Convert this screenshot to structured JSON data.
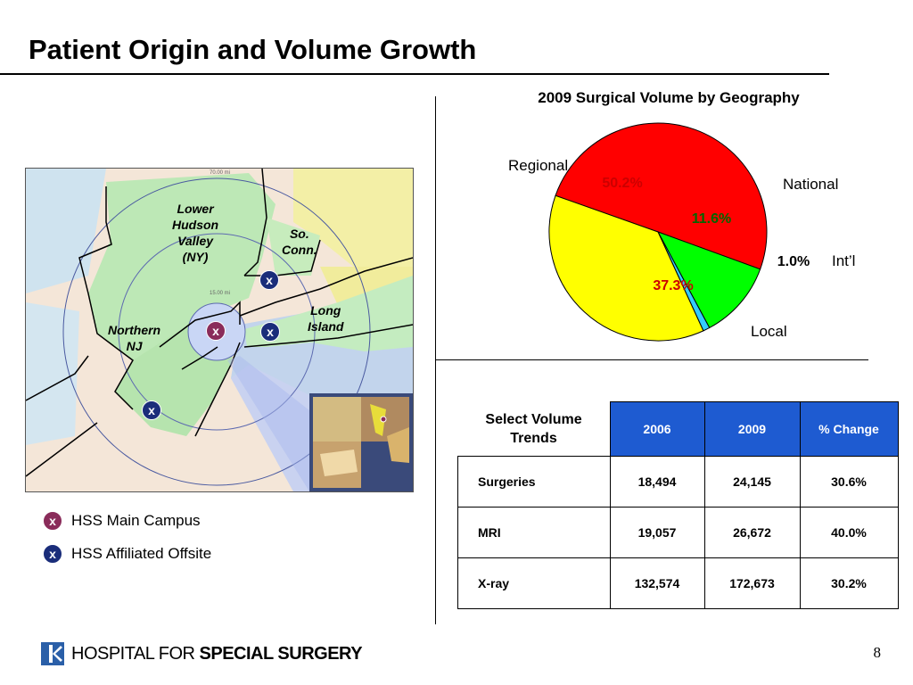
{
  "title": "Patient Origin and Volume Growth",
  "chart_data": {
    "type": "pie",
    "title": "2009 Surgical Volume by Geography",
    "slices": [
      {
        "label": "Regional",
        "value": 50.2,
        "display": "50.2%",
        "color": "#ff0000"
      },
      {
        "label": "National",
        "value": 11.6,
        "display": "11.6%",
        "color": "#00ff00"
      },
      {
        "label": "Int’l",
        "value": 1.0,
        "display": "1.0%",
        "color": "#33ccff"
      },
      {
        "label": "Local",
        "value": 37.3,
        "display": "37.3%",
        "color": "#ffff00"
      }
    ]
  },
  "map": {
    "regions": {
      "lower_hudson": "Lower\nHudson\nValley\n(NY)",
      "so_conn": "So.\nConn.",
      "long_island": "Long\nIsland",
      "northern_nj": "Northern\nNJ"
    },
    "markers": {
      "main": "x",
      "affiliated": "x"
    }
  },
  "legend": {
    "main_label": "HSS Main Campus",
    "affiliated_label": "HSS Affiliated Offsite",
    "main_color": "#8a2c5a",
    "affiliated_color": "#1a2d7a"
  },
  "table": {
    "corner": "Select Volume\nTrends",
    "headers": [
      "2006",
      "2009",
      "% Change"
    ],
    "header_color": "#1e5bd1",
    "rows": [
      {
        "name": "Surgeries",
        "values": [
          "18,494",
          "24,145",
          "30.6%"
        ]
      },
      {
        "name": "MRI",
        "values": [
          "19,057",
          "26,672",
          "40.0%"
        ]
      },
      {
        "name": "X-ray",
        "values": [
          "132,574",
          "172,673",
          "30.2%"
        ]
      }
    ]
  },
  "footer": {
    "logo_prefix": "HOSPITAL FOR ",
    "logo_bold": "SPECIAL SURGERY",
    "page_number": "8"
  }
}
